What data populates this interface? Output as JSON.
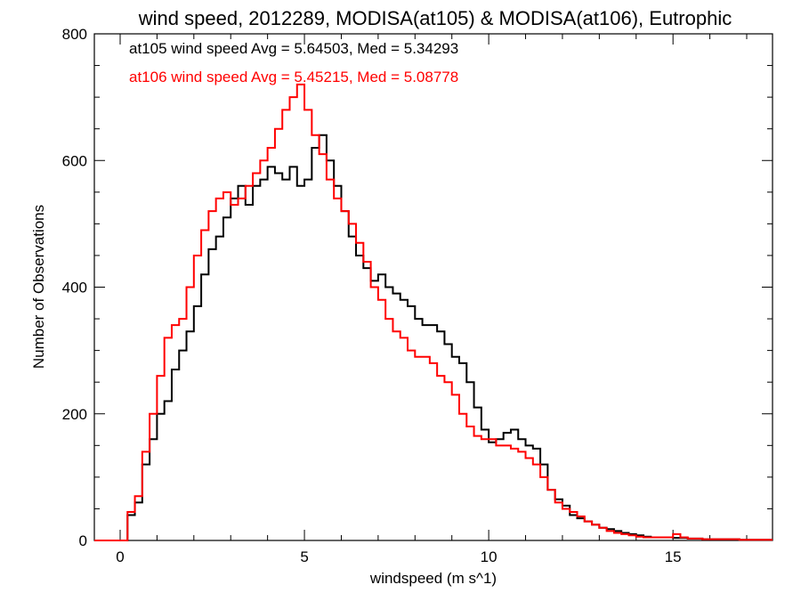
{
  "chart_data": {
    "type": "line",
    "title": "wind speed, 2012289, MODISA(at105) & MODISA(at106), Eutrophic",
    "xlabel": "windspeed (m s^1)",
    "ylabel": "Number of Observations",
    "xlim": [
      -0.7,
      17.7
    ],
    "ylim": [
      0,
      800
    ],
    "xticks": [
      0,
      5,
      10,
      15
    ],
    "yticks": [
      0,
      200,
      400,
      600,
      800
    ],
    "xtick_labels": [
      "0",
      "5",
      "10",
      "15"
    ],
    "ytick_labels": [
      "0",
      "200",
      "400",
      "600",
      "800"
    ],
    "grid": false,
    "annotations": [
      {
        "text": "at105 wind speed Avg = 5.64503, Med = 5.34293",
        "color": "#000000"
      },
      {
        "text": "at106 wind speed Avg = 5.45215, Med = 5.08778",
        "color": "#ff0000"
      }
    ],
    "series": [
      {
        "color": "#000000",
        "x": [
          -0.7,
          0,
          0.2,
          0.4,
          0.6,
          0.8,
          1.0,
          1.2,
          1.4,
          1.6,
          1.8,
          2.0,
          2.2,
          2.4,
          2.6,
          2.8,
          3.0,
          3.2,
          3.4,
          3.6,
          3.8,
          4.0,
          4.2,
          4.4,
          4.6,
          4.8,
          5.0,
          5.2,
          5.4,
          5.6,
          5.8,
          6.0,
          6.2,
          6.4,
          6.6,
          6.8,
          7.0,
          7.2,
          7.4,
          7.6,
          7.8,
          8.0,
          8.2,
          8.4,
          8.6,
          8.8,
          9.0,
          9.2,
          9.4,
          9.6,
          9.8,
          10.0,
          10.2,
          10.4,
          10.6,
          10.8,
          11.0,
          11.2,
          11.4,
          11.6,
          11.8,
          12.0,
          12.2,
          12.4,
          12.6,
          12.8,
          13.0,
          13.2,
          13.4,
          13.6,
          13.8,
          14.0,
          14.2,
          14.4,
          14.6,
          14.8,
          15.0,
          15.2,
          15.4,
          15.6,
          15.8,
          16.0,
          16.4,
          16.8,
          17.2,
          17.7
        ],
        "y": [
          0,
          0,
          40,
          60,
          120,
          160,
          200,
          220,
          270,
          300,
          330,
          370,
          420,
          460,
          480,
          510,
          540,
          560,
          530,
          560,
          570,
          590,
          580,
          570,
          590,
          560,
          570,
          620,
          640,
          600,
          560,
          520,
          480,
          450,
          430,
          410,
          420,
          400,
          390,
          380,
          370,
          350,
          340,
          340,
          330,
          310,
          290,
          280,
          250,
          210,
          175,
          155,
          160,
          170,
          175,
          160,
          150,
          145,
          120,
          80,
          65,
          55,
          40,
          35,
          30,
          25,
          20,
          18,
          15,
          12,
          10,
          8,
          6,
          5,
          5,
          5,
          4,
          4,
          3,
          3,
          2,
          2,
          2,
          1,
          1,
          1
        ]
      },
      {
        "color": "#ff0000",
        "x": [
          -0.7,
          0,
          0.2,
          0.4,
          0.6,
          0.8,
          1.0,
          1.2,
          1.4,
          1.6,
          1.8,
          2.0,
          2.2,
          2.4,
          2.6,
          2.8,
          3.0,
          3.2,
          3.4,
          3.6,
          3.8,
          4.0,
          4.2,
          4.4,
          4.6,
          4.8,
          5.0,
          5.2,
          5.4,
          5.6,
          5.8,
          6.0,
          6.2,
          6.4,
          6.6,
          6.8,
          7.0,
          7.2,
          7.4,
          7.6,
          7.8,
          8.0,
          8.2,
          8.4,
          8.6,
          8.8,
          9.0,
          9.2,
          9.4,
          9.6,
          9.8,
          10.0,
          10.2,
          10.4,
          10.6,
          10.8,
          11.0,
          11.2,
          11.4,
          11.6,
          11.8,
          12.0,
          12.2,
          12.4,
          12.6,
          12.8,
          13.0,
          13.2,
          13.4,
          13.6,
          13.8,
          14.0,
          14.2,
          14.4,
          14.6,
          14.8,
          15.0,
          15.2,
          15.4,
          15.6,
          15.8,
          16.0,
          16.4,
          16.8,
          17.2,
          17.7
        ],
        "y": [
          0,
          0,
          45,
          70,
          140,
          200,
          260,
          320,
          340,
          350,
          400,
          450,
          490,
          520,
          540,
          550,
          530,
          540,
          560,
          580,
          600,
          620,
          650,
          680,
          700,
          720,
          680,
          640,
          610,
          570,
          540,
          520,
          500,
          470,
          440,
          400,
          380,
          350,
          330,
          320,
          300,
          290,
          290,
          280,
          260,
          250,
          230,
          200,
          180,
          165,
          160,
          160,
          150,
          150,
          145,
          140,
          130,
          120,
          100,
          80,
          60,
          50,
          45,
          38,
          30,
          25,
          20,
          15,
          12,
          10,
          8,
          6,
          5,
          5,
          5,
          5,
          10,
          5,
          3,
          3,
          2,
          2,
          2,
          1,
          1,
          1
        ]
      }
    ]
  }
}
